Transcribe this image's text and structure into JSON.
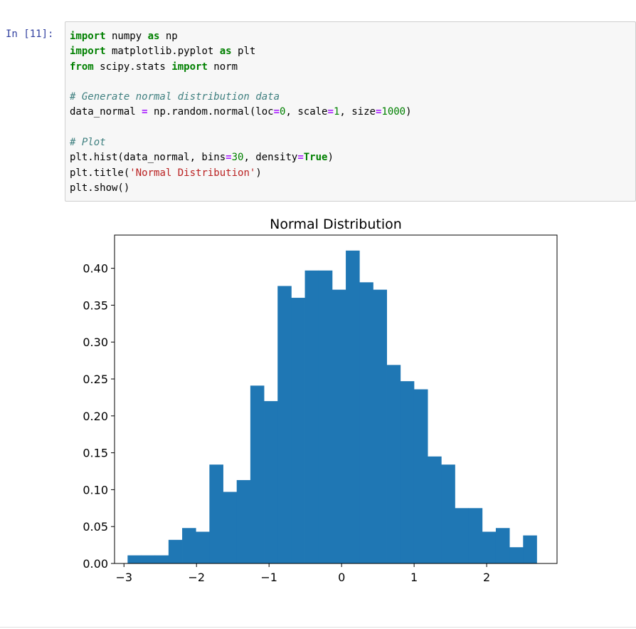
{
  "cell": {
    "prompt": "In [11]:",
    "code_lines": [
      [
        {
          "t": "kw",
          "s": "import"
        },
        {
          "t": "tx",
          "s": " numpy "
        },
        {
          "t": "kw",
          "s": "as"
        },
        {
          "t": "tx",
          "s": " np"
        }
      ],
      [
        {
          "t": "kw",
          "s": "import"
        },
        {
          "t": "tx",
          "s": " matplotlib.pyplot "
        },
        {
          "t": "kw",
          "s": "as"
        },
        {
          "t": "tx",
          "s": " plt"
        }
      ],
      [
        {
          "t": "kw",
          "s": "from"
        },
        {
          "t": "tx",
          "s": " scipy.stats "
        },
        {
          "t": "kw",
          "s": "import"
        },
        {
          "t": "tx",
          "s": " norm"
        }
      ],
      [],
      [
        {
          "t": "cm",
          "s": "# Generate normal distribution data"
        }
      ],
      [
        {
          "t": "tx",
          "s": "data_normal "
        },
        {
          "t": "op",
          "s": "="
        },
        {
          "t": "tx",
          "s": " np.random.normal(loc"
        },
        {
          "t": "op",
          "s": "="
        },
        {
          "t": "num",
          "s": "0"
        },
        {
          "t": "tx",
          "s": ", scale"
        },
        {
          "t": "op",
          "s": "="
        },
        {
          "t": "num",
          "s": "1"
        },
        {
          "t": "tx",
          "s": ", size"
        },
        {
          "t": "op",
          "s": "="
        },
        {
          "t": "num",
          "s": "1000"
        },
        {
          "t": "tx",
          "s": ")"
        }
      ],
      [],
      [
        {
          "t": "cm",
          "s": "# Plot"
        }
      ],
      [
        {
          "t": "tx",
          "s": "plt.hist(data_normal, bins"
        },
        {
          "t": "op",
          "s": "="
        },
        {
          "t": "num",
          "s": "30"
        },
        {
          "t": "tx",
          "s": ", density"
        },
        {
          "t": "op",
          "s": "="
        },
        {
          "t": "kw",
          "s": "True"
        },
        {
          "t": "tx",
          "s": ")"
        }
      ],
      [
        {
          "t": "tx",
          "s": "plt.title("
        },
        {
          "t": "str",
          "s": "'Normal Distribution'"
        },
        {
          "t": "tx",
          "s": ")"
        }
      ],
      [
        {
          "t": "tx",
          "s": "plt.show()"
        }
      ]
    ]
  },
  "chart_data": {
    "type": "bar",
    "title": "Normal Distribution",
    "xlabel": "",
    "ylabel": "",
    "bin_edges": [
      -2.95,
      -2.762,
      -2.574,
      -2.386,
      -2.198,
      -2.01,
      -1.822,
      -1.634,
      -1.446,
      -1.258,
      -1.07,
      -0.882,
      -0.694,
      -0.506,
      -0.318,
      -0.13,
      0.058,
      0.246,
      0.434,
      0.622,
      0.81,
      0.998,
      1.186,
      1.374,
      1.562,
      1.75,
      1.938,
      2.126,
      2.314,
      2.502,
      2.69
    ],
    "values": [
      0.011,
      0.011,
      0.011,
      0.032,
      0.048,
      0.043,
      0.134,
      0.097,
      0.113,
      0.241,
      0.22,
      0.376,
      0.36,
      0.397,
      0.397,
      0.371,
      0.424,
      0.381,
      0.371,
      0.269,
      0.247,
      0.236,
      0.145,
      0.134,
      0.075,
      0.075,
      0.043,
      0.048,
      0.022,
      0.038
    ],
    "xlim": [
      -3.13,
      2.97
    ],
    "ylim": [
      0,
      0.445
    ],
    "xticks": [
      -3,
      -2,
      -1,
      0,
      1,
      2
    ],
    "xtick_labels": [
      "−3",
      "−2",
      "−1",
      "0",
      "1",
      "2"
    ],
    "yticks": [
      0,
      0.05,
      0.1,
      0.15,
      0.2,
      0.25,
      0.3,
      0.35,
      0.4
    ],
    "ytick_labels": [
      "0.00",
      "0.05",
      "0.10",
      "0.15",
      "0.20",
      "0.25",
      "0.30",
      "0.35",
      "0.40"
    ],
    "bar_color": "#1f77b4",
    "grid": false
  }
}
